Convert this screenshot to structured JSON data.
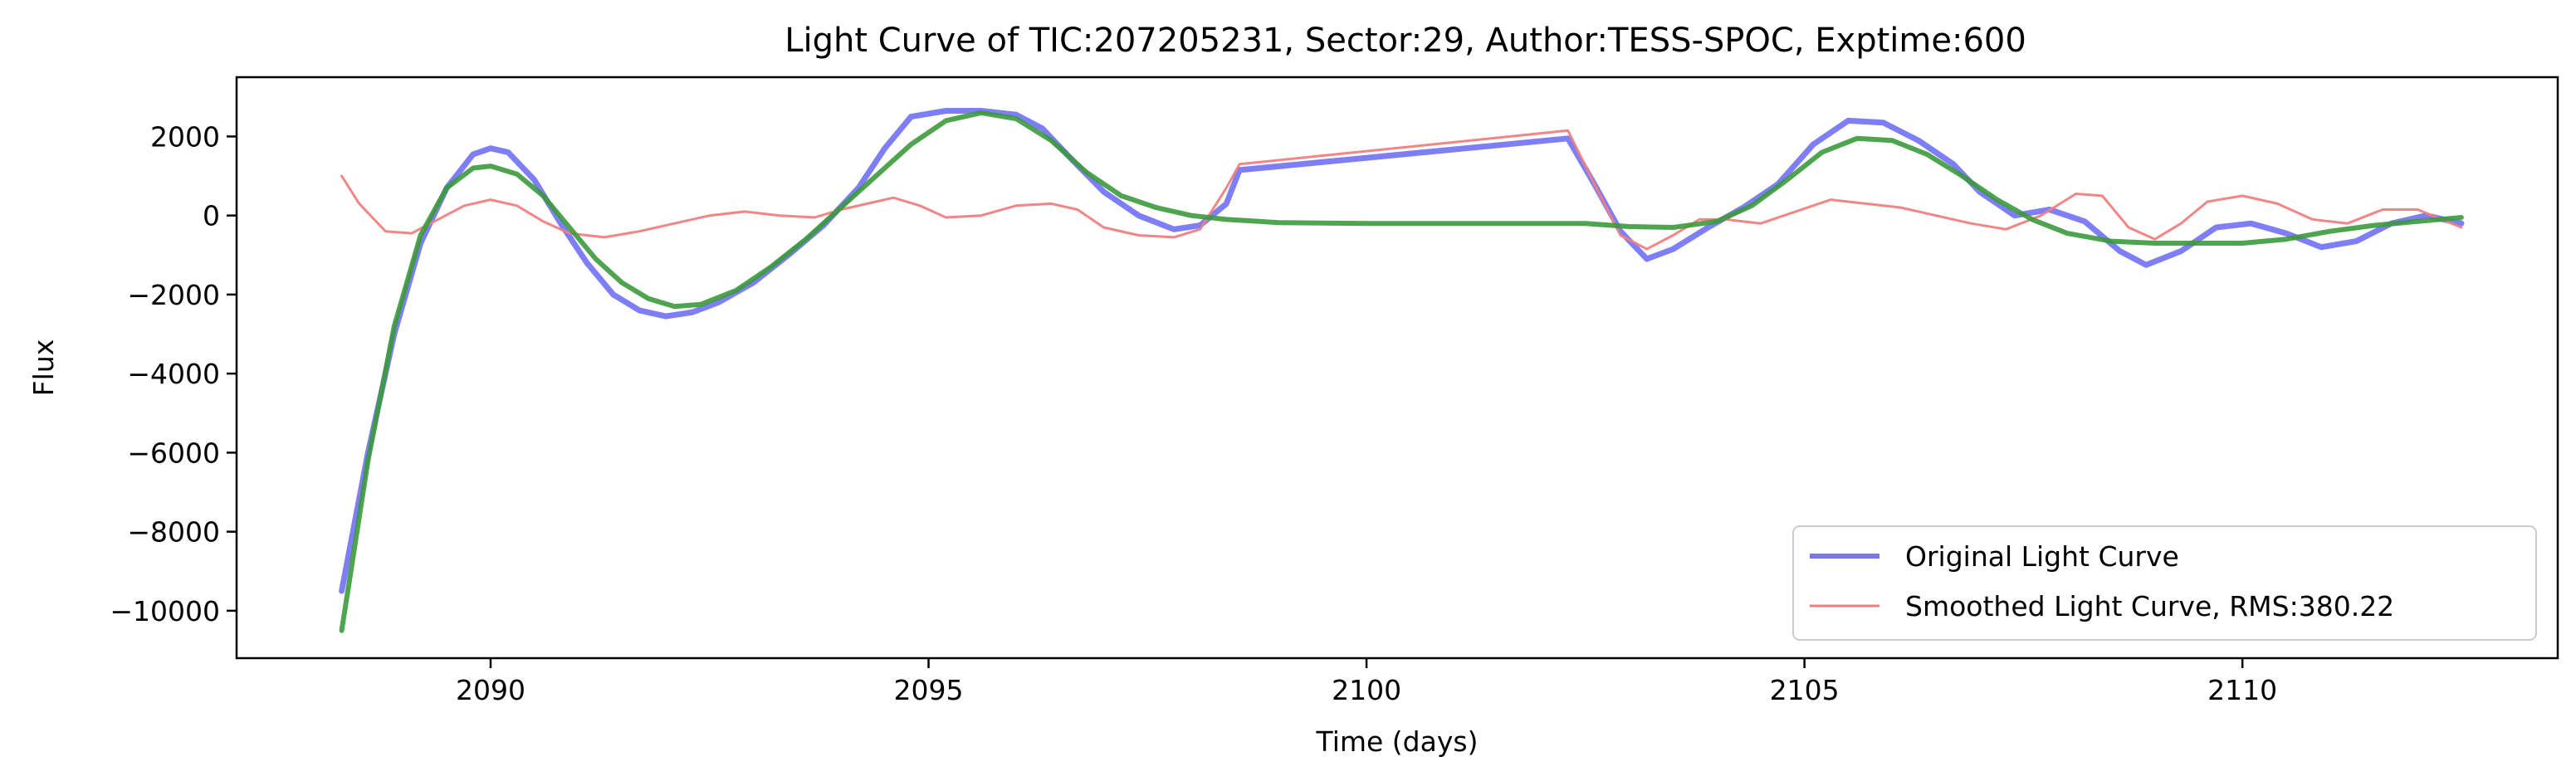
{
  "chart_data": {
    "type": "line",
    "title": "Light Curve of TIC:207205231, Sector:29, Author:TESS-SPOC, Exptime:600",
    "xlabel": "Time (days)",
    "ylabel": "Flux",
    "xlim": [
      2087.1,
      2113.6
    ],
    "ylim": [
      -11200,
      3500
    ],
    "x_ticks": [
      2090,
      2095,
      2100,
      2105,
      2110
    ],
    "y_ticks": [
      2000,
      0,
      -2000,
      -4000,
      -6000,
      -8000,
      -10000
    ],
    "x_tick_labels": [
      "2090",
      "2095",
      "2100",
      "2105",
      "2110"
    ],
    "y_tick_labels": [
      "2000",
      "0",
      "−2000",
      "−4000",
      "−6000",
      "−8000",
      "−10000"
    ],
    "grid": false,
    "legend_position": "lower-right",
    "series": [
      {
        "name": "Original Light Curve",
        "color": "#7777f5",
        "points": [
          [
            2088.3,
            -9500
          ],
          [
            2088.6,
            -6000
          ],
          [
            2088.9,
            -3000
          ],
          [
            2089.2,
            -700
          ],
          [
            2089.5,
            700
          ],
          [
            2089.8,
            1550
          ],
          [
            2090.0,
            1700
          ],
          [
            2090.2,
            1600
          ],
          [
            2090.5,
            900
          ],
          [
            2090.8,
            -200
          ],
          [
            2091.1,
            -1200
          ],
          [
            2091.4,
            -2000
          ],
          [
            2091.7,
            -2400
          ],
          [
            2092.0,
            -2550
          ],
          [
            2092.3,
            -2450
          ],
          [
            2092.6,
            -2200
          ],
          [
            2093.0,
            -1700
          ],
          [
            2093.4,
            -1000
          ],
          [
            2093.8,
            -250
          ],
          [
            2094.2,
            700
          ],
          [
            2094.5,
            1700
          ],
          [
            2094.8,
            2500
          ],
          [
            2095.2,
            2650
          ],
          [
            2095.6,
            2650
          ],
          [
            2096.0,
            2550
          ],
          [
            2096.3,
            2200
          ],
          [
            2096.6,
            1500
          ],
          [
            2097.0,
            600
          ],
          [
            2097.4,
            0
          ],
          [
            2097.8,
            -350
          ],
          [
            2098.1,
            -250
          ],
          [
            2098.4,
            300
          ],
          [
            2098.55,
            1150
          ],
          [
            2102.3,
            1950
          ],
          [
            2102.6,
            800
          ],
          [
            2102.9,
            -400
          ],
          [
            2103.2,
            -1100
          ],
          [
            2103.5,
            -850
          ],
          [
            2103.9,
            -300
          ],
          [
            2104.3,
            200
          ],
          [
            2104.7,
            800
          ],
          [
            2105.1,
            1800
          ],
          [
            2105.5,
            2400
          ],
          [
            2105.9,
            2350
          ],
          [
            2106.3,
            1900
          ],
          [
            2106.7,
            1300
          ],
          [
            2107.0,
            600
          ],
          [
            2107.4,
            0
          ],
          [
            2107.8,
            150
          ],
          [
            2108.2,
            -150
          ],
          [
            2108.6,
            -900
          ],
          [
            2108.9,
            -1250
          ],
          [
            2109.3,
            -900
          ],
          [
            2109.7,
            -300
          ],
          [
            2110.1,
            -200
          ],
          [
            2110.5,
            -450
          ],
          [
            2110.9,
            -800
          ],
          [
            2111.3,
            -650
          ],
          [
            2111.7,
            -200
          ],
          [
            2112.1,
            0
          ],
          [
            2112.5,
            -200
          ]
        ]
      },
      {
        "name": "Smoothed Light Curve, RMS:380.22",
        "color": "#f08080",
        "points": [
          [
            2088.3,
            1000
          ],
          [
            2088.5,
            300
          ],
          [
            2088.8,
            -400
          ],
          [
            2089.1,
            -450
          ],
          [
            2089.4,
            -100
          ],
          [
            2089.7,
            250
          ],
          [
            2090.0,
            400
          ],
          [
            2090.3,
            250
          ],
          [
            2090.6,
            -150
          ],
          [
            2090.9,
            -450
          ],
          [
            2091.3,
            -550
          ],
          [
            2091.7,
            -400
          ],
          [
            2092.1,
            -200
          ],
          [
            2092.5,
            0
          ],
          [
            2092.9,
            100
          ],
          [
            2093.3,
            0
          ],
          [
            2093.7,
            -50
          ],
          [
            2094.0,
            150
          ],
          [
            2094.3,
            300
          ],
          [
            2094.6,
            450
          ],
          [
            2094.9,
            250
          ],
          [
            2095.2,
            -50
          ],
          [
            2095.6,
            0
          ],
          [
            2096.0,
            250
          ],
          [
            2096.4,
            300
          ],
          [
            2096.7,
            150
          ],
          [
            2097.0,
            -300
          ],
          [
            2097.4,
            -500
          ],
          [
            2097.8,
            -550
          ],
          [
            2098.1,
            -350
          ],
          [
            2098.4,
            700
          ],
          [
            2098.55,
            1300
          ],
          [
            2102.3,
            2150
          ],
          [
            2102.6,
            800
          ],
          [
            2102.9,
            -500
          ],
          [
            2103.2,
            -850
          ],
          [
            2103.5,
            -500
          ],
          [
            2103.8,
            -100
          ],
          [
            2104.1,
            -100
          ],
          [
            2104.5,
            -200
          ],
          [
            2104.9,
            100
          ],
          [
            2105.3,
            400
          ],
          [
            2105.7,
            300
          ],
          [
            2106.1,
            200
          ],
          [
            2106.5,
            0
          ],
          [
            2106.9,
            -200
          ],
          [
            2107.3,
            -350
          ],
          [
            2107.7,
            0
          ],
          [
            2108.1,
            550
          ],
          [
            2108.4,
            500
          ],
          [
            2108.7,
            -300
          ],
          [
            2109.0,
            -600
          ],
          [
            2109.3,
            -200
          ],
          [
            2109.6,
            350
          ],
          [
            2110.0,
            500
          ],
          [
            2110.4,
            300
          ],
          [
            2110.8,
            -100
          ],
          [
            2111.2,
            -200
          ],
          [
            2111.6,
            150
          ],
          [
            2112.0,
            150
          ],
          [
            2112.5,
            -300
          ]
        ]
      },
      {
        "name": "",
        "color": "#3c9a3c",
        "points": [
          [
            2088.3,
            -10500
          ],
          [
            2088.6,
            -6200
          ],
          [
            2088.9,
            -2800
          ],
          [
            2089.2,
            -500
          ],
          [
            2089.5,
            700
          ],
          [
            2089.8,
            1200
          ],
          [
            2090.0,
            1250
          ],
          [
            2090.3,
            1050
          ],
          [
            2090.6,
            500
          ],
          [
            2090.9,
            -300
          ],
          [
            2091.2,
            -1100
          ],
          [
            2091.5,
            -1700
          ],
          [
            2091.8,
            -2100
          ],
          [
            2092.1,
            -2300
          ],
          [
            2092.4,
            -2250
          ],
          [
            2092.8,
            -1900
          ],
          [
            2093.2,
            -1300
          ],
          [
            2093.6,
            -600
          ],
          [
            2094.0,
            200
          ],
          [
            2094.4,
            1000
          ],
          [
            2094.8,
            1800
          ],
          [
            2095.2,
            2400
          ],
          [
            2095.6,
            2600
          ],
          [
            2096.0,
            2450
          ],
          [
            2096.4,
            1900
          ],
          [
            2096.8,
            1100
          ],
          [
            2097.2,
            500
          ],
          [
            2097.6,
            200
          ],
          [
            2098.0,
            0
          ],
          [
            2098.4,
            -100
          ],
          [
            2099.0,
            -180
          ],
          [
            2100.0,
            -200
          ],
          [
            2101.0,
            -200
          ],
          [
            2102.0,
            -200
          ],
          [
            2102.5,
            -200
          ],
          [
            2103.0,
            -280
          ],
          [
            2103.5,
            -300
          ],
          [
            2104.0,
            -150
          ],
          [
            2104.4,
            250
          ],
          [
            2104.8,
            900
          ],
          [
            2105.2,
            1600
          ],
          [
            2105.6,
            1950
          ],
          [
            2106.0,
            1900
          ],
          [
            2106.4,
            1550
          ],
          [
            2106.8,
            1000
          ],
          [
            2107.2,
            400
          ],
          [
            2107.6,
            -100
          ],
          [
            2108.0,
            -450
          ],
          [
            2108.5,
            -650
          ],
          [
            2109.0,
            -700
          ],
          [
            2109.5,
            -700
          ],
          [
            2110.0,
            -700
          ],
          [
            2110.5,
            -600
          ],
          [
            2111.0,
            -400
          ],
          [
            2111.5,
            -250
          ],
          [
            2112.0,
            -150
          ],
          [
            2112.5,
            -50
          ]
        ]
      }
    ],
    "legend": [
      {
        "label": "Original Light Curve",
        "color": "#7777f5"
      },
      {
        "label": "Smoothed Light Curve, RMS:380.22",
        "color": "#f08080"
      }
    ]
  }
}
